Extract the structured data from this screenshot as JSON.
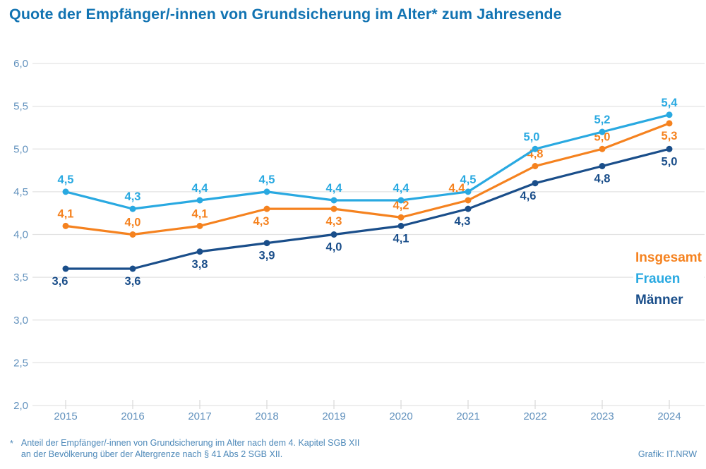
{
  "title": "Quote der Empfänger/-innen von Grundsicherung im Alter* zum Jahresende",
  "footnote": {
    "marker": "*",
    "line1": "Anteil der Empfänger/-innen von Grundsicherung im Alter nach dem 4. Kapitel SGB XII",
    "line2": "an der Bevölkerung über der Altergrenze nach § 41 Abs 2 SGB XII."
  },
  "credit": "Grafik: IT.NRW",
  "colors": {
    "title_blue": "#1173B2",
    "axis_label_blue": "#6191BD",
    "gridline_gray": "#E3E3E3",
    "tick_gray": "#D9D9D9",
    "footnote_blue": "#4E89B9"
  },
  "chart_data": {
    "type": "line",
    "title": "Quote der Empfänger/-innen von Grundsicherung im Alter* zum Jahresende",
    "x": [
      2015,
      2016,
      2017,
      2018,
      2019,
      2020,
      2021,
      2022,
      2023,
      2024
    ],
    "series": [
      {
        "name": "Insgesamt",
        "color": "#F5821F",
        "values": [
          4.1,
          4.0,
          4.1,
          4.3,
          4.3,
          4.2,
          4.4,
          4.8,
          5.0,
          5.3
        ],
        "labels": [
          "4,1",
          "4,0",
          "4,1",
          "4,3",
          "4,3",
          "4,2",
          "4,4",
          "4,8",
          "5,0",
          "5,3"
        ],
        "label_pos": [
          "above",
          "above",
          "above",
          "below",
          "below",
          "above",
          "above",
          "above",
          "above",
          "below"
        ],
        "label_dx": [
          0,
          0,
          0,
          -8,
          0,
          0,
          -16,
          0,
          0,
          0
        ]
      },
      {
        "name": "Frauen",
        "color": "#29A9E1",
        "values": [
          4.5,
          4.3,
          4.4,
          4.5,
          4.4,
          4.4,
          4.5,
          5.0,
          5.2,
          5.4
        ],
        "labels": [
          "4,5",
          "4,3",
          "4,4",
          "4,5",
          "4,4",
          "4,4",
          "4,5",
          "5,0",
          "5,2",
          "5,4"
        ],
        "label_pos": [
          "above",
          "above",
          "above",
          "above",
          "above",
          "above",
          "above",
          "above",
          "above",
          "above"
        ],
        "label_dx": [
          0,
          0,
          0,
          0,
          0,
          0,
          0,
          -5,
          0,
          0
        ]
      },
      {
        "name": "Männer",
        "color": "#1A4E8A",
        "values": [
          3.6,
          3.6,
          3.8,
          3.9,
          4.0,
          4.1,
          4.3,
          4.6,
          4.8,
          5.0
        ],
        "labels": [
          "3,6",
          "3,6",
          "3,8",
          "3,9",
          "4,0",
          "4,1",
          "4,3",
          "4,6",
          "4,8",
          "5,0"
        ],
        "label_pos": [
          "below",
          "below",
          "below",
          "below",
          "below",
          "below",
          "below",
          "below",
          "below",
          "below"
        ],
        "label_dx": [
          -8,
          0,
          0,
          0,
          0,
          0,
          -8,
          -10,
          0,
          0
        ]
      }
    ],
    "xlabel": "",
    "ylabel": "",
    "ylim": [
      2.0,
      6.0
    ],
    "yticks": [
      {
        "v": 2.0,
        "label": "2,0"
      },
      {
        "v": 2.5,
        "label": "2,5"
      },
      {
        "v": 3.0,
        "label": "3,0"
      },
      {
        "v": 3.5,
        "label": "3,5"
      },
      {
        "v": 4.0,
        "label": "4,0"
      },
      {
        "v": 4.5,
        "label": "4,5"
      },
      {
        "v": 5.0,
        "label": "5,0"
      },
      {
        "v": 5.5,
        "label": "5,5"
      },
      {
        "v": 6.0,
        "label": "6,0"
      }
    ],
    "grid": true,
    "legend_position": "right",
    "legend_order": [
      "Insgesamt",
      "Frauen",
      "Männer"
    ]
  }
}
